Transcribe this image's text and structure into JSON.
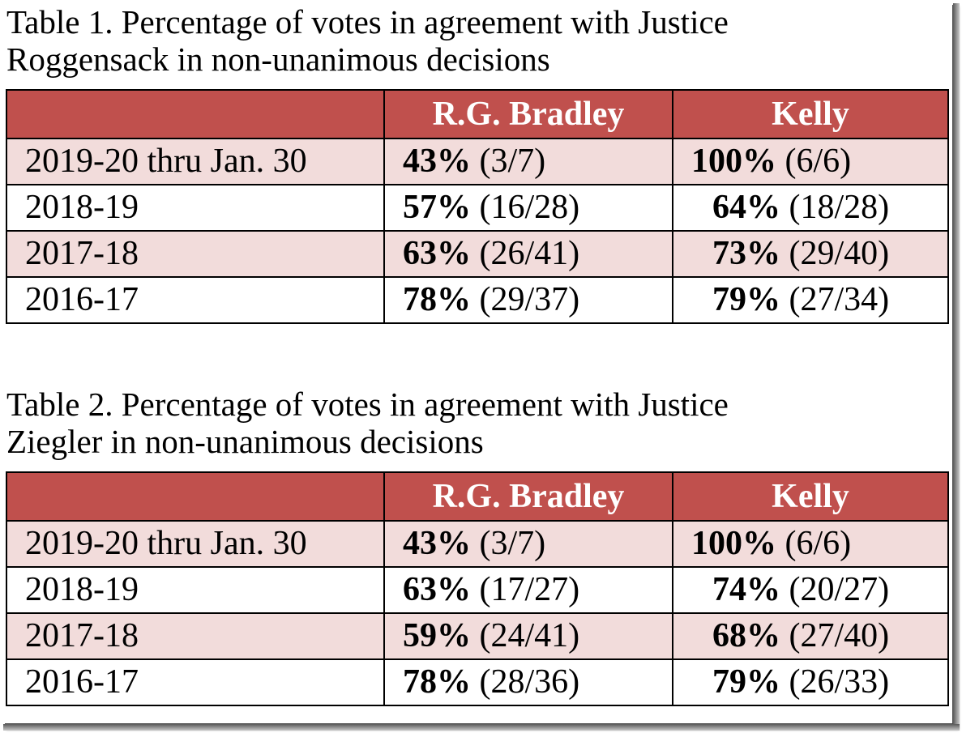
{
  "tables": [
    {
      "caption_line1": "Table 1. Percentage of votes in agreement with Justice",
      "caption_line2": "Roggensack in non-unanimous decisions",
      "headers": [
        "",
        "R.G. Bradley",
        "Kelly"
      ],
      "rows": [
        {
          "term": "2019-20 thru Jan. 30",
          "bradley_pct": "43%",
          "bradley_count": " (3/7)",
          "kelly_pct": "100%",
          "kelly_count": " (6/6)"
        },
        {
          "term": "2018-19",
          "bradley_pct": "57%",
          "bradley_count": " (16/28)",
          "kelly_pct": "64%",
          "kelly_count": " (18/28)"
        },
        {
          "term": "2017-18",
          "bradley_pct": "63%",
          "bradley_count": " (26/41)",
          "kelly_pct": "73%",
          "kelly_count": " (29/40)"
        },
        {
          "term": "2016-17",
          "bradley_pct": "78%",
          "bradley_count": " (29/37)",
          "kelly_pct": "79%",
          "kelly_count": " (27/34)"
        }
      ]
    },
    {
      "caption_line1": "Table 2. Percentage of votes in agreement with Justice",
      "caption_line2": "Ziegler in non-unanimous decisions",
      "headers": [
        "",
        "R.G. Bradley",
        "Kelly"
      ],
      "rows": [
        {
          "term": "2019-20 thru Jan. 30",
          "bradley_pct": "43%",
          "bradley_count": " (3/7)",
          "kelly_pct": "100%",
          "kelly_count": " (6/6)"
        },
        {
          "term": "2018-19",
          "bradley_pct": "63%",
          "bradley_count": " (17/27)",
          "kelly_pct": "74%",
          "kelly_count": " (20/27)"
        },
        {
          "term": "2017-18",
          "bradley_pct": "59%",
          "bradley_count": " (24/41)",
          "kelly_pct": "68%",
          "kelly_count": " (27/40)"
        },
        {
          "term": "2016-17",
          "bradley_pct": "78%",
          "bradley_count": " (28/36)",
          "kelly_pct": "79%",
          "kelly_count": " (26/33)"
        }
      ]
    }
  ],
  "colors": {
    "header_bg": "#c0504d",
    "header_text": "#ffffff",
    "shaded_row": "#f2dcdb",
    "plain_row": "#ffffff"
  }
}
